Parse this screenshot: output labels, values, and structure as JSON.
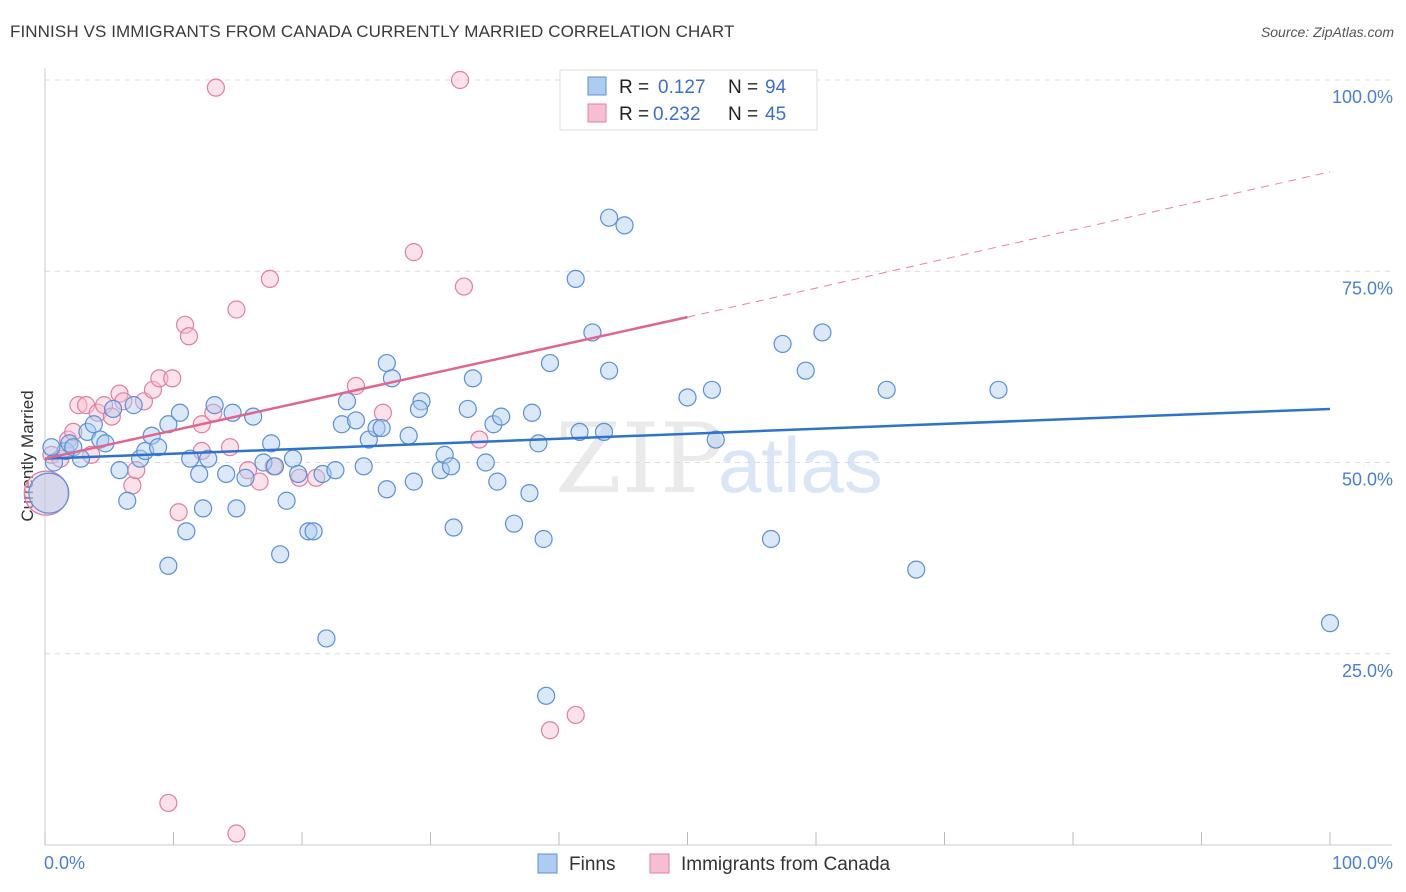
{
  "title": "FINNISH VS IMMIGRANTS FROM CANADA CURRENTLY MARRIED CORRELATION CHART",
  "source": "Source: ZipAtlas.com",
  "colors": {
    "finns_fill": "#aecbf0",
    "finns_stroke": "#5b8fd8",
    "finns_line": "#2f72d0",
    "canada_fill": "#f6bfd0",
    "canada_stroke": "#e07fa0",
    "canada_line": "#e0668f",
    "tick_text": "#4a7fd4"
  },
  "legend": {
    "r_label": "R =",
    "n_label": "N =",
    "finns_r": "0.127",
    "finns_n": "94",
    "canada_r": "0.232",
    "canada_n": "45"
  },
  "bottom_legend": {
    "finns": "Finns",
    "canada": "Immigrants from Canada"
  },
  "watermark": {
    "zip": "ZIP",
    "atlas": "atlas"
  },
  "chart_data": {
    "type": "scatter",
    "title": "FINNISH VS IMMIGRANTS FROM CANADA CURRENTLY MARRIED CORRELATION CHART",
    "xlabel": "",
    "ylabel": "Currently Married",
    "xlim": [
      0,
      100
    ],
    "ylim": [
      0,
      100
    ],
    "x_tick_labels": [
      "0.0%",
      "100.0%"
    ],
    "y_tick_labels": [
      "100.0%",
      "75.0%",
      "50.0%",
      "25.0%"
    ],
    "y_ticks": [
      100,
      75,
      50,
      25
    ],
    "grid": true,
    "legend_position": "top-center",
    "series": [
      {
        "name": "Finns",
        "r": 0.127,
        "n": 94,
        "trend": {
          "x": [
            0,
            100
          ],
          "y": [
            50.5,
            57.0
          ]
        },
        "points": [
          [
            0.3,
            46
          ],
          [
            0.7,
            50
          ],
          [
            1.6,
            51.5
          ],
          [
            1.9,
            52.5
          ],
          [
            2.2,
            52
          ],
          [
            2.8,
            50.5
          ],
          [
            3.3,
            54
          ],
          [
            3.8,
            55
          ],
          [
            4.3,
            53
          ],
          [
            4.7,
            52.5
          ],
          [
            5.3,
            57
          ],
          [
            5.8,
            49
          ],
          [
            6.4,
            45
          ],
          [
            6.9,
            57.5
          ],
          [
            7.4,
            50.5
          ],
          [
            7.8,
            51.5
          ],
          [
            8.3,
            53.5
          ],
          [
            8.8,
            52
          ],
          [
            9.6,
            55
          ],
          [
            9.6,
            36.5
          ],
          [
            10.5,
            56.5
          ],
          [
            11,
            41
          ],
          [
            11.3,
            50.5
          ],
          [
            12,
            48.5
          ],
          [
            12.3,
            44
          ],
          [
            12.7,
            50.5
          ],
          [
            13.2,
            57.5
          ],
          [
            14.1,
            48.5
          ],
          [
            14.6,
            56.5
          ],
          [
            14.9,
            44
          ],
          [
            15.6,
            48
          ],
          [
            16.2,
            56
          ],
          [
            17,
            50
          ],
          [
            17.6,
            52.5
          ],
          [
            17.9,
            49.5
          ],
          [
            18.3,
            38
          ],
          [
            18.8,
            45
          ],
          [
            19.3,
            50.5
          ],
          [
            19.7,
            48.5
          ],
          [
            20.5,
            41
          ],
          [
            20.9,
            41
          ],
          [
            21.6,
            48.5
          ],
          [
            21.9,
            27
          ],
          [
            22.6,
            49
          ],
          [
            23.1,
            55
          ],
          [
            23.5,
            58
          ],
          [
            24.2,
            55.5
          ],
          [
            24.8,
            49.5
          ],
          [
            25.2,
            53
          ],
          [
            25.8,
            54.5
          ],
          [
            26.2,
            54.5
          ],
          [
            26.6,
            63
          ],
          [
            27,
            61
          ],
          [
            26.6,
            46.5
          ],
          [
            28.3,
            53.5
          ],
          [
            28.7,
            47.5
          ],
          [
            29.3,
            58
          ],
          [
            29.1,
            57
          ],
          [
            30.8,
            49
          ],
          [
            31.1,
            51
          ],
          [
            31.6,
            49.5
          ],
          [
            31.8,
            41.5
          ],
          [
            32.9,
            57
          ],
          [
            33.3,
            61
          ],
          [
            34.3,
            50
          ],
          [
            34.9,
            55
          ],
          [
            35.2,
            47.5
          ],
          [
            35.5,
            56
          ],
          [
            36.5,
            42
          ],
          [
            37.9,
            56.5
          ],
          [
            37.7,
            46
          ],
          [
            38.4,
            52.5
          ],
          [
            38.8,
            40
          ],
          [
            39,
            19.5
          ],
          [
            39.3,
            63
          ],
          [
            41.3,
            74
          ],
          [
            41.6,
            54
          ],
          [
            42.6,
            67
          ],
          [
            43.5,
            54
          ],
          [
            43.9,
            62
          ],
          [
            43.9,
            82
          ],
          [
            45.1,
            81
          ],
          [
            50,
            58.5
          ],
          [
            51.9,
            59.5
          ],
          [
            52.2,
            53
          ],
          [
            56.5,
            40
          ],
          [
            57.4,
            65.5
          ],
          [
            59.2,
            62
          ],
          [
            60.5,
            67
          ],
          [
            65.5,
            59.5
          ],
          [
            67.8,
            36
          ],
          [
            74.2,
            59.5
          ],
          [
            100,
            29
          ],
          [
            0.5,
            52
          ]
        ]
      },
      {
        "name": "Immigrants from Canada",
        "r": 0.232,
        "n": 45,
        "trend": {
          "x": [
            0,
            50
          ],
          "y": [
            50.5,
            69.0
          ]
        },
        "trend_dashed": {
          "x": [
            50,
            100
          ],
          "y": [
            69.0,
            88.0
          ]
        },
        "points": [
          [
            0.1,
            46
          ],
          [
            0.5,
            51
          ],
          [
            1.2,
            50.5
          ],
          [
            1.8,
            53
          ],
          [
            2.2,
            54
          ],
          [
            2.6,
            57.5
          ],
          [
            3.2,
            57.5
          ],
          [
            3.6,
            51
          ],
          [
            4.1,
            56.5
          ],
          [
            4.6,
            57.5
          ],
          [
            5.2,
            56
          ],
          [
            5.8,
            59
          ],
          [
            6.1,
            58
          ],
          [
            6.8,
            47
          ],
          [
            7.1,
            49
          ],
          [
            7.7,
            58
          ],
          [
            8.4,
            59.5
          ],
          [
            8.9,
            61
          ],
          [
            9.9,
            61
          ],
          [
            10.4,
            43.5
          ],
          [
            10.9,
            68
          ],
          [
            11.2,
            66.5
          ],
          [
            12.2,
            55
          ],
          [
            12.2,
            51.5
          ],
          [
            13.1,
            56.5
          ],
          [
            13.3,
            99
          ],
          [
            14.4,
            52
          ],
          [
            14.9,
            70
          ],
          [
            14.9,
            1.5
          ],
          [
            15.8,
            49
          ],
          [
            16.7,
            47.5
          ],
          [
            17.5,
            74
          ],
          [
            17.8,
            49.5
          ],
          [
            19.8,
            48
          ],
          [
            21.1,
            48
          ],
          [
            24.2,
            60
          ],
          [
            26.3,
            56.5
          ],
          [
            28.7,
            77.5
          ],
          [
            32.3,
            100
          ],
          [
            32.6,
            73
          ],
          [
            33.8,
            53
          ],
          [
            39.3,
            15
          ],
          [
            41.3,
            17
          ],
          [
            47,
            100
          ],
          [
            9.6,
            5.5
          ]
        ]
      }
    ]
  }
}
